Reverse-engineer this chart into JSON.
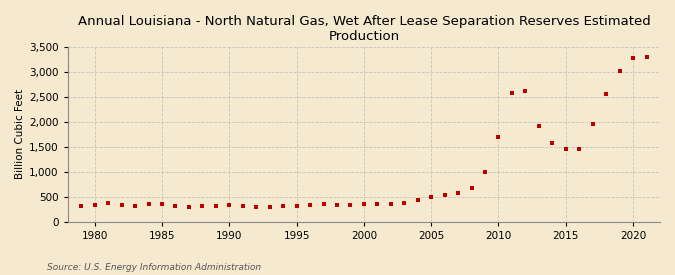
{
  "title": "Annual Louisiana - North Natural Gas, Wet After Lease Separation Reserves Estimated\nProduction",
  "ylabel": "Billion Cubic Feet",
  "source": "Source: U.S. Energy Information Administration",
  "background_color": "#f5e9d0",
  "marker_color": "#bb0000",
  "grid_color": "#bbbbbb",
  "years": [
    1979,
    1980,
    1981,
    1982,
    1983,
    1984,
    1985,
    1986,
    1987,
    1988,
    1989,
    1990,
    1991,
    1992,
    1993,
    1994,
    1995,
    1996,
    1997,
    1998,
    1999,
    2000,
    2001,
    2002,
    2003,
    2004,
    2005,
    2006,
    2007,
    2008,
    2009,
    2010,
    2011,
    2012,
    2013,
    2014,
    2015,
    2016,
    2017,
    2018,
    2019,
    2020,
    2021
  ],
  "values": [
    310,
    335,
    365,
    340,
    310,
    355,
    345,
    310,
    300,
    315,
    315,
    330,
    320,
    300,
    295,
    305,
    310,
    330,
    355,
    340,
    330,
    350,
    360,
    355,
    380,
    430,
    500,
    530,
    570,
    680,
    990,
    1700,
    2580,
    2620,
    1920,
    1570,
    1450,
    1460,
    1960,
    2560,
    3010,
    3280,
    3290
  ],
  "xlim": [
    1978,
    2022
  ],
  "ylim": [
    0,
    3500
  ],
  "yticks": [
    0,
    500,
    1000,
    1500,
    2000,
    2500,
    3000,
    3500
  ],
  "xticks": [
    1980,
    1985,
    1990,
    1995,
    2000,
    2005,
    2010,
    2015,
    2020
  ],
  "title_fontsize": 9.5,
  "label_fontsize": 7.5,
  "tick_fontsize": 7.5,
  "source_fontsize": 6.5
}
